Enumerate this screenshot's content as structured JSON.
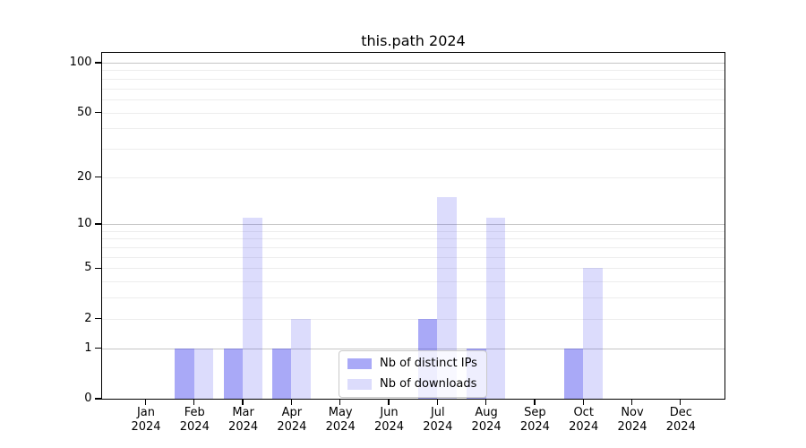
{
  "title": "this.path 2024",
  "chart_data": {
    "type": "bar",
    "title": "this.path 2024",
    "x": [
      "Jan",
      "Feb",
      "Mar",
      "Apr",
      "May",
      "Jun",
      "Jul",
      "Aug",
      "Sep",
      "Oct",
      "Nov",
      "Dec"
    ],
    "year": "2024",
    "series": [
      {
        "name": "Nb of distinct IPs",
        "values": [
          0,
          1,
          1,
          1,
          0,
          0,
          2,
          1,
          0,
          1,
          0,
          0
        ],
        "color": "rgba(40,40,235,0.40)",
        "color_hex": "#a9a9f7"
      },
      {
        "name": "Nb of downloads",
        "values": [
          0,
          1,
          11,
          2,
          0,
          0,
          15,
          11,
          0,
          5,
          0,
          0
        ],
        "color": "rgba(40,40,235,0.165)",
        "color_hex": "#dbdbfa"
      }
    ],
    "y_axis": {
      "scale": "log10(1+x)",
      "ticks": [
        100,
        50,
        20,
        10,
        5,
        2,
        1,
        0
      ],
      "major_gridlines": [
        1,
        10,
        100
      ],
      "minor_gridlines": [
        2,
        3,
        4,
        5,
        6,
        7,
        8,
        9,
        20,
        30,
        40,
        50,
        60,
        70,
        80,
        90
      ],
      "top_value": 111
    },
    "x_axis": {
      "tick_label_line2": "2024"
    },
    "legend": {
      "items": [
        "Nb of distinct IPs",
        "Nb of downloads"
      ],
      "position": "lower-center"
    },
    "grid": true,
    "colors": {
      "major_grid": "#c6c6c6",
      "minor_grid": "#ededed",
      "spine": "#000000"
    }
  }
}
